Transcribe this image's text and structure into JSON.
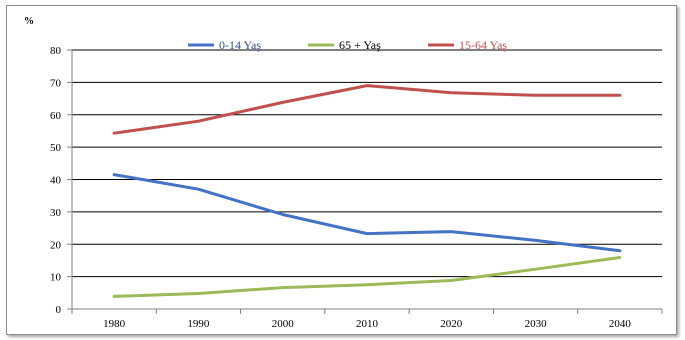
{
  "chart_data": {
    "type": "line",
    "title": "",
    "xlabel": "",
    "ylabel": "%",
    "ylim": [
      0,
      80
    ],
    "yticks": [
      0,
      10,
      20,
      30,
      40,
      50,
      60,
      70,
      80
    ],
    "grid": true,
    "legend_position": "top",
    "categories": [
      "1980",
      "1990",
      "2000",
      "2010",
      "2020",
      "2030",
      "2040"
    ],
    "series": [
      {
        "name": "0-14 Yaş",
        "color": "#4472c4",
        "label_color": "#2f4f8f",
        "values": [
          41.5,
          37,
          29.2,
          23.3,
          23.9,
          21.2,
          18
        ]
      },
      {
        "name": "65 + Yaş",
        "color": "#9bbb59",
        "label_color": "#000000",
        "values": [
          3.9,
          4.8,
          6.6,
          7.5,
          8.8,
          12.3,
          15.9
        ]
      },
      {
        "name": "15-64 Yaş",
        "color": "#c0504d",
        "label_color": "#c0504d",
        "values": [
          54.3,
          58,
          63.8,
          69,
          66.8,
          66,
          66
        ]
      }
    ]
  }
}
